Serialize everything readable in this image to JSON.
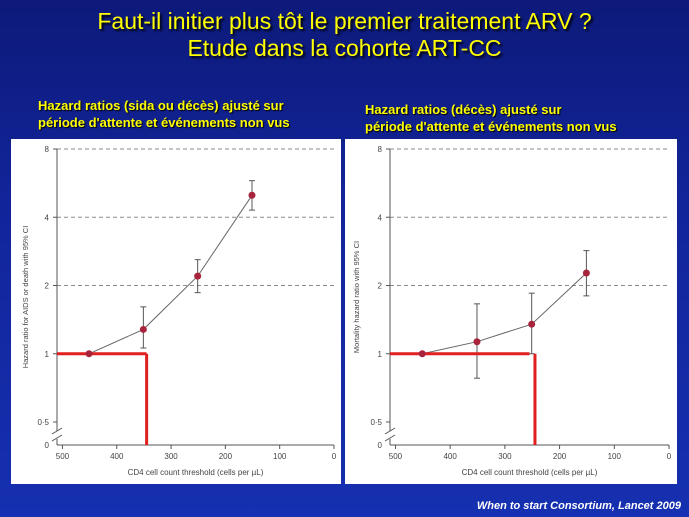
{
  "slide": {
    "title_line1": "Faut-il initier plus tôt le premier traitement ARV ?",
    "title_line2": "Etude dans la cohorte ART-CC",
    "citation": "When to start Consortium, Lancet 2009"
  },
  "panels": [
    {
      "subtitle_line1": "Hazard ratios (sida ou décès) ajusté sur",
      "subtitle_line2": "période d'attente et événements non vus"
    },
    {
      "subtitle_line1": "Hazard ratios (décès) ajusté sur",
      "subtitle_line2": "période d'attente et événements non vus"
    }
  ],
  "chart_data": [
    {
      "type": "line",
      "ylabel": "Hazard ratio for AIDS or death with 95% CI",
      "xlabel": "CD4 cell count threshold (cells per µL)",
      "y_scale": "log",
      "x_reversed": true,
      "xlim": [
        510,
        0
      ],
      "xticks": [
        500,
        400,
        300,
        200,
        100,
        0
      ],
      "yticks": [
        0.5,
        1,
        2,
        4,
        8
      ],
      "ytick_labels": [
        "0·5",
        "1",
        "2",
        "4",
        "8"
      ],
      "y_origin_label": "0",
      "grid": "dashed horizontal at 2, 4, 8",
      "points": [
        {
          "x": 451,
          "y": 1.0
        },
        {
          "x": 351,
          "y": 1.28,
          "lo": 1.06,
          "hi": 1.61
        },
        {
          "x": 251,
          "y": 2.2,
          "lo": 1.86,
          "hi": 2.6
        },
        {
          "x": 151,
          "y": 5.0,
          "lo": 4.3,
          "hi": 5.8
        }
      ],
      "reference_line": {
        "y": 1.0,
        "x_from": 510,
        "x_to": 345,
        "drop_x": 345
      }
    },
    {
      "type": "line",
      "ylabel": "Mortality hazard ratio with 95% CI",
      "xlabel": "CD4 cell count threshold (cells per µL)",
      "y_scale": "log",
      "x_reversed": true,
      "xlim": [
        510,
        0
      ],
      "xticks": [
        500,
        400,
        300,
        200,
        100,
        0
      ],
      "yticks": [
        0.5,
        1,
        2,
        4,
        8
      ],
      "ytick_labels": [
        "0·5",
        "1",
        "2",
        "4",
        "8"
      ],
      "y_origin_label": "0",
      "grid": "dashed horizontal at 2, 4, 8",
      "points": [
        {
          "x": 451,
          "y": 1.0
        },
        {
          "x": 351,
          "y": 1.13,
          "lo": 0.78,
          "hi": 1.66
        },
        {
          "x": 251,
          "y": 1.35,
          "lo": 1.0,
          "hi": 1.85
        },
        {
          "x": 151,
          "y": 2.27,
          "lo": 1.8,
          "hi": 2.85
        }
      ],
      "reference_line": {
        "y": 1.0,
        "x_from": 510,
        "x_to": 255,
        "drop_x": 245
      }
    }
  ],
  "colors": {
    "title": "#ffff00",
    "background": "#12249a",
    "marker": "#a8243c",
    "reference": "#e02020"
  }
}
